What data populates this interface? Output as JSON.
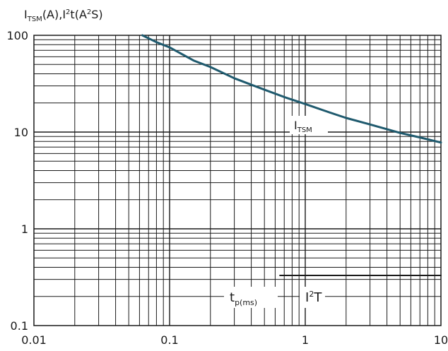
{
  "chart_data": {
    "type": "line",
    "title": "",
    "xscale": "log",
    "yscale": "log",
    "xlim": [
      0.01,
      10
    ],
    "ylim": [
      0.1,
      100
    ],
    "grid": true,
    "ylabel": {
      "p1": "I",
      "sub": "TSM",
      "p2": "(A),I",
      "sup1": "2",
      "p3": "t(A",
      "sup2": "2",
      "p4": "S)"
    },
    "xlabel": {
      "main": "t",
      "sub": "p(ms)"
    },
    "x_ticks": [
      {
        "value": 0.01,
        "label": "0.01"
      },
      {
        "value": 0.1,
        "label": "0.1"
      },
      {
        "value": 1,
        "label": "1"
      },
      {
        "value": 10,
        "label": "10"
      }
    ],
    "y_ticks": [
      {
        "value": 0.1,
        "label": "0.1"
      },
      {
        "value": 1,
        "label": "1"
      },
      {
        "value": 10,
        "label": "10"
      },
      {
        "value": 100,
        "label": "100"
      }
    ],
    "series": [
      {
        "label_main": "I",
        "label_sub": "TSM",
        "color": "#1f5a6e",
        "x": [
          0.063,
          0.08,
          0.1,
          0.15,
          0.2,
          0.3,
          0.45,
          0.7,
          1,
          1.5,
          2,
          3,
          5,
          7,
          10
        ],
        "y": [
          100,
          85,
          75,
          55,
          47,
          36,
          29,
          23,
          19.5,
          16,
          14,
          12,
          9.8,
          8.8,
          7.8
        ]
      },
      {
        "label_main": "I",
        "label_sup": "2",
        "label_tail": "T",
        "color": "#1a1a1a",
        "x": [
          0.65,
          10
        ],
        "y": [
          0.33,
          0.33
        ]
      }
    ]
  }
}
